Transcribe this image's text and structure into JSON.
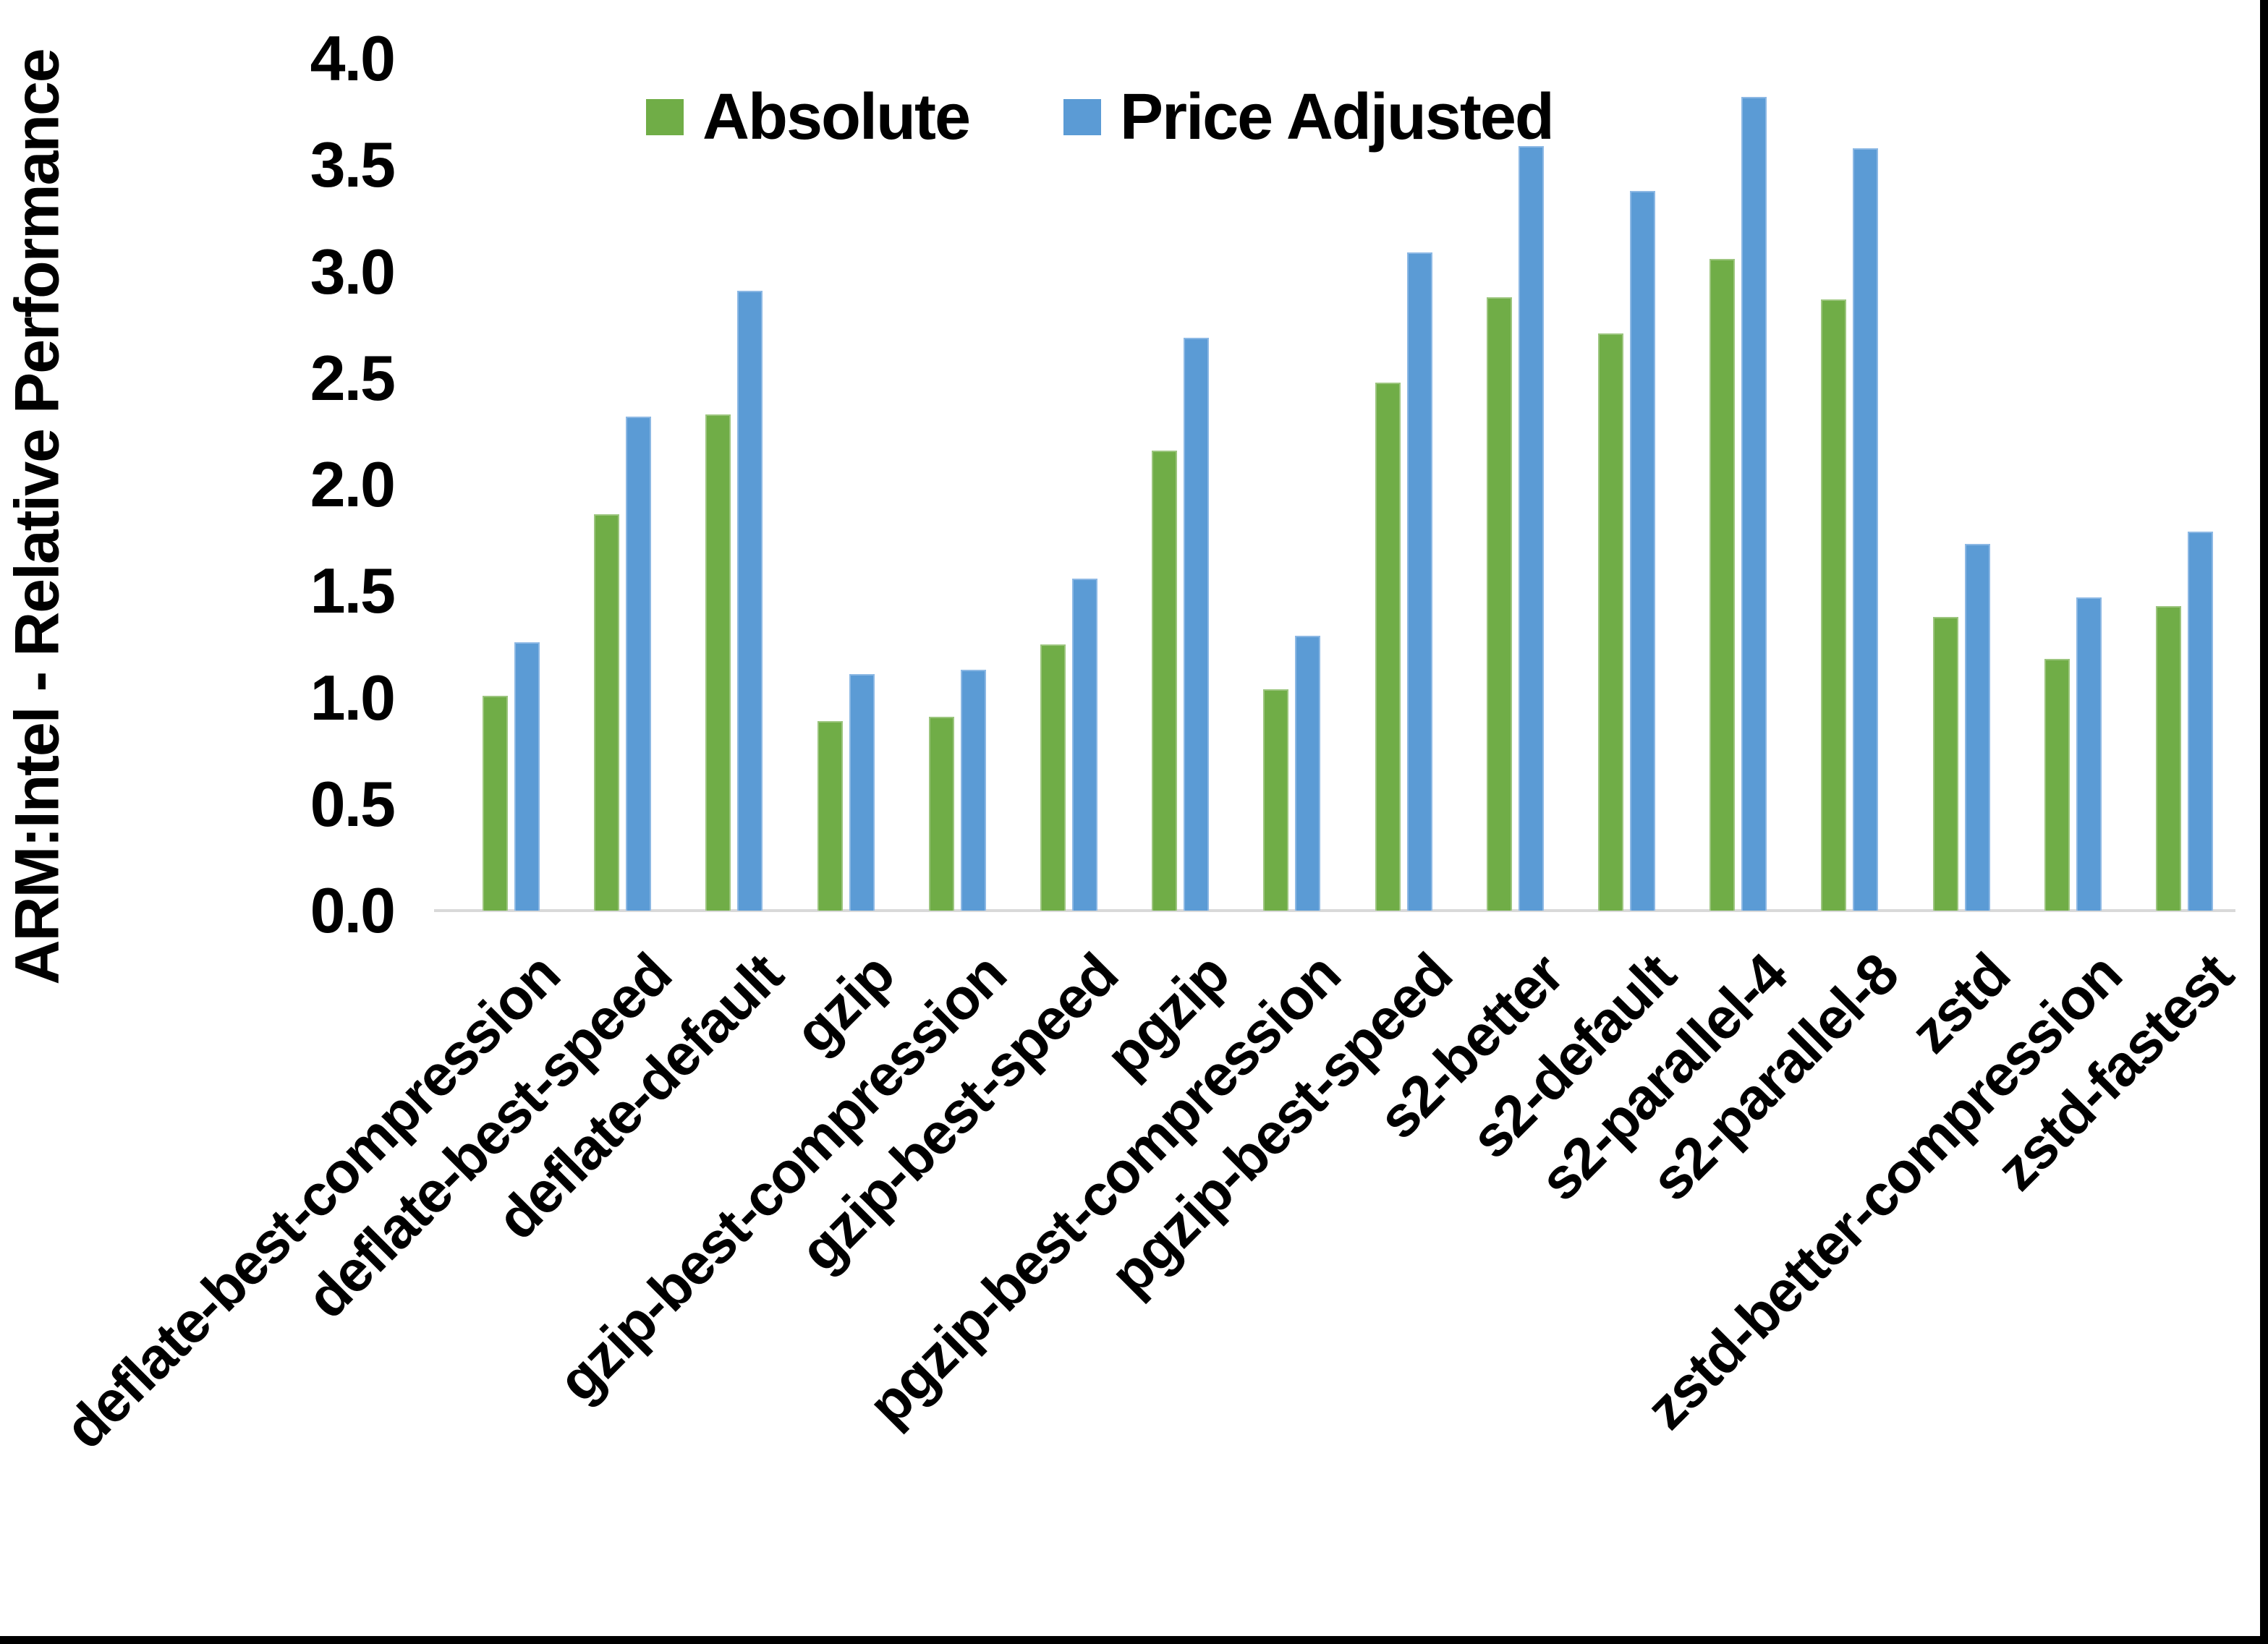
{
  "chart_data": {
    "type": "bar",
    "title": "",
    "ylabel": "ARM:Intel - Relative Performance",
    "xlabel": "",
    "ylim": [
      0.0,
      4.0
    ],
    "ytick_interval": 0.5,
    "ytick_labels": [
      "0.0",
      "0.5",
      "1.0",
      "1.5",
      "2.0",
      "2.5",
      "3.0",
      "3.5",
      "4.0"
    ],
    "grid": false,
    "legend_position": "top-center",
    "axis_line_color": "#D9D9D9",
    "categories": [
      "deflate-best-compression",
      "deflate-best-speed",
      "deflate-default",
      "gzip",
      "gzip-best-compression",
      "gzip-best-speed",
      "pgzip",
      "pgzip-best-compression",
      "pgzip-best-speed",
      "s2-better",
      "s2-default",
      "s2-parallel-4",
      "s2-parallel-8",
      "zstd",
      "zstd-better-compression",
      "zstd-fastest"
    ],
    "series": [
      {
        "name": "Absolute",
        "color": "#70AD47",
        "values": [
          1.01,
          1.86,
          2.33,
          0.89,
          0.91,
          1.25,
          2.16,
          1.04,
          2.48,
          2.88,
          2.71,
          3.06,
          2.87,
          1.38,
          1.18,
          1.43
        ]
      },
      {
        "name": "Price Adjusted",
        "color": "#5B9BD5",
        "values": [
          1.26,
          2.32,
          2.91,
          1.11,
          1.13,
          1.56,
          2.69,
          1.29,
          3.09,
          3.59,
          3.38,
          3.82,
          3.58,
          1.72,
          1.47,
          1.78
        ]
      }
    ]
  }
}
